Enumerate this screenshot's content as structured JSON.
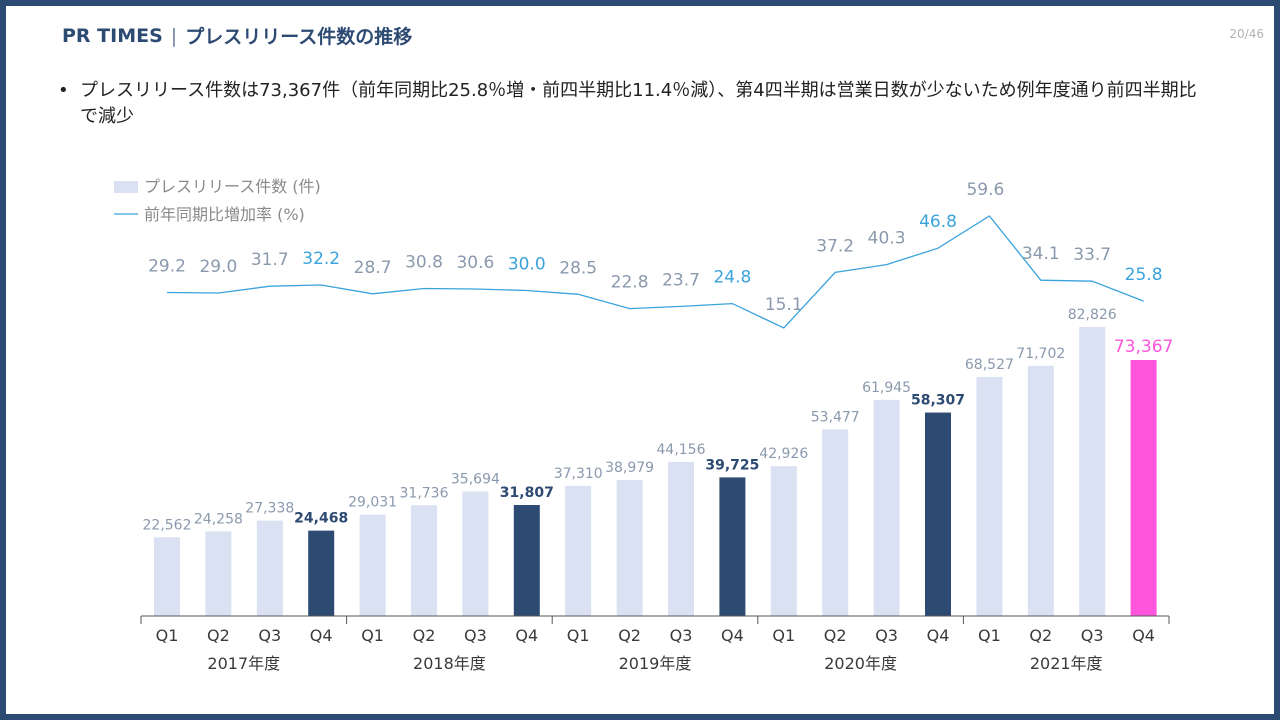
{
  "header": {
    "brand": "PR TIMES",
    "separator": "|",
    "title": "プレスリリース件数の推移"
  },
  "page_number": "20/46",
  "summary": {
    "bullet": "•",
    "text": "プレスリリース件数は73,367件（前年同期比25.8％増・前四半期比11.4％減）、第4四半期は営業日数が少ないため例年度通り前四半期比で減少"
  },
  "colors": {
    "frame": "#2d4a73",
    "bar_light": "#d9e1f2",
    "bar_dark": "#2d4a73",
    "bar_highlight": "#ff55dd",
    "line": "#3aa3dc",
    "label_gray": "#8a99ad",
    "label_blue": "#3aa3dc",
    "label_dark": "#2d4a73"
  },
  "chart_data": {
    "type": "bar+line",
    "title": "",
    "legend": [
      {
        "name": "プレスリリース件数 (件)",
        "kind": "bar"
      },
      {
        "name": "前年同期比増加率 (%)",
        "kind": "line"
      }
    ],
    "legend_position": "top-left",
    "categories": [
      "Q1",
      "Q2",
      "Q3",
      "Q4",
      "Q1",
      "Q2",
      "Q3",
      "Q4",
      "Q1",
      "Q2",
      "Q3",
      "Q4",
      "Q1",
      "Q2",
      "Q3",
      "Q4",
      "Q1",
      "Q2",
      "Q3",
      "Q4"
    ],
    "year_groups": [
      "2017年度",
      "2018年度",
      "2019年度",
      "2020年度",
      "2021年度"
    ],
    "series": [
      {
        "name": "プレスリリース件数 (件)",
        "type": "bar",
        "values": [
          22562,
          24258,
          27338,
          24468,
          29031,
          31736,
          35694,
          31807,
          37310,
          38979,
          44156,
          39725,
          42926,
          53477,
          61945,
          58307,
          68527,
          71702,
          82826,
          73367
        ],
        "labels": [
          "22,562",
          "24,258",
          "27,338",
          "24,468",
          "29,031",
          "31,736",
          "35,694",
          "31,807",
          "37,310",
          "38,979",
          "44,156",
          "39,725",
          "42,926",
          "53,477",
          "61,945",
          "58,307",
          "68,527",
          "71,702",
          "82,826",
          "73,367"
        ]
      },
      {
        "name": "前年同期比増加率 (%)",
        "type": "line",
        "values": [
          29.2,
          29.0,
          31.7,
          32.2,
          28.7,
          30.8,
          30.6,
          30.0,
          28.5,
          22.8,
          23.7,
          24.8,
          15.1,
          37.2,
          40.3,
          46.8,
          59.6,
          34.1,
          33.7,
          25.8
        ],
        "labels": [
          "29.2",
          "29.0",
          "31.7",
          "32.2",
          "28.7",
          "30.8",
          "30.6",
          "30.0",
          "28.5",
          "22.8",
          "23.7",
          "24.8",
          "15.1",
          "37.2",
          "40.3",
          "46.8",
          "59.6",
          "34.1",
          "33.7",
          "25.8"
        ]
      }
    ],
    "bar_ylim": [
      0,
      82826
    ],
    "line_ylim": [
      15.1,
      59.6
    ]
  }
}
